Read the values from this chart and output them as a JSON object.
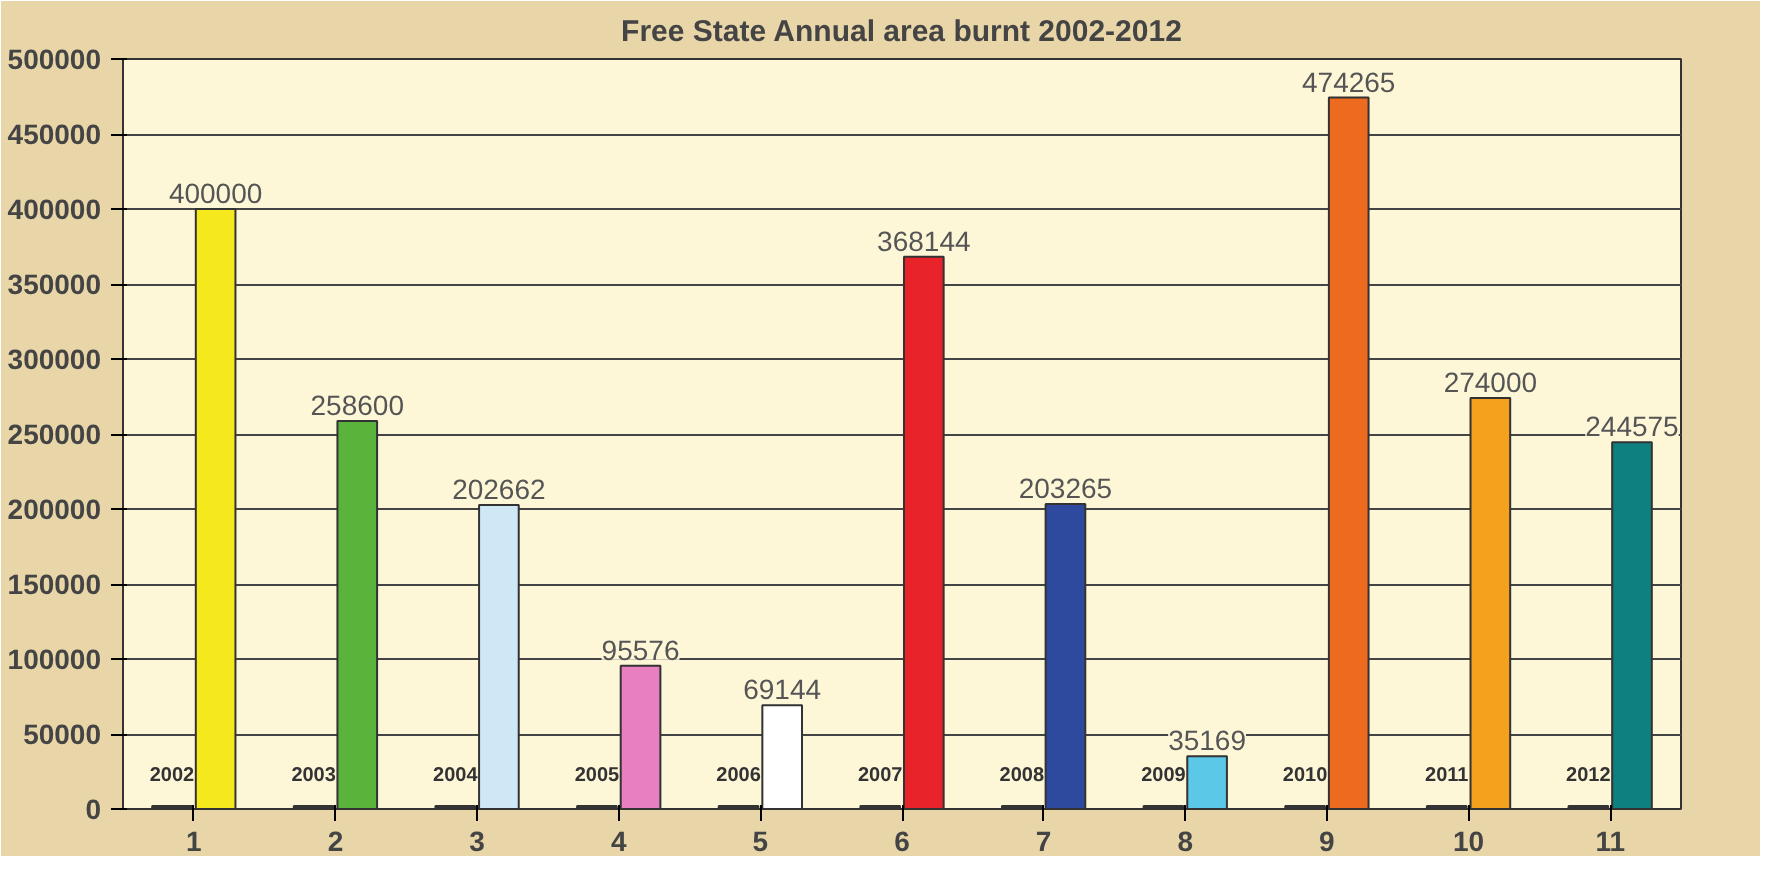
{
  "chart_data": {
    "type": "bar",
    "title": "Free State Annual area burnt 2002-2012",
    "categories": [
      "1",
      "2",
      "3",
      "4",
      "5",
      "6",
      "7",
      "8",
      "9",
      "10",
      "11"
    ],
    "series": [
      {
        "color": "#333333",
        "values": [
          2002,
          2003,
          2004,
          2005,
          2006,
          2007,
          2008,
          2009,
          2010,
          2011,
          2012
        ]
      },
      {
        "colors": [
          "#f5e81c",
          "#5ab43c",
          "#cfe8f5",
          "#e77fc0",
          "#ffffff",
          "#e8232a",
          "#2e4a9e",
          "#5bc8e8",
          "#ee6a1e",
          "#f5a11e",
          "#0e8080"
        ],
        "values": [
          400000,
          258600,
          202662,
          95576,
          69144,
          368144,
          203265,
          35169,
          474265,
          274000,
          244575
        ]
      }
    ],
    "ylim": [
      0,
      500000
    ],
    "yticks": [
      0,
      50000,
      100000,
      150000,
      200000,
      250000,
      300000,
      350000,
      400000,
      450000,
      500000
    ],
    "grid": "y",
    "data_labels": true
  }
}
